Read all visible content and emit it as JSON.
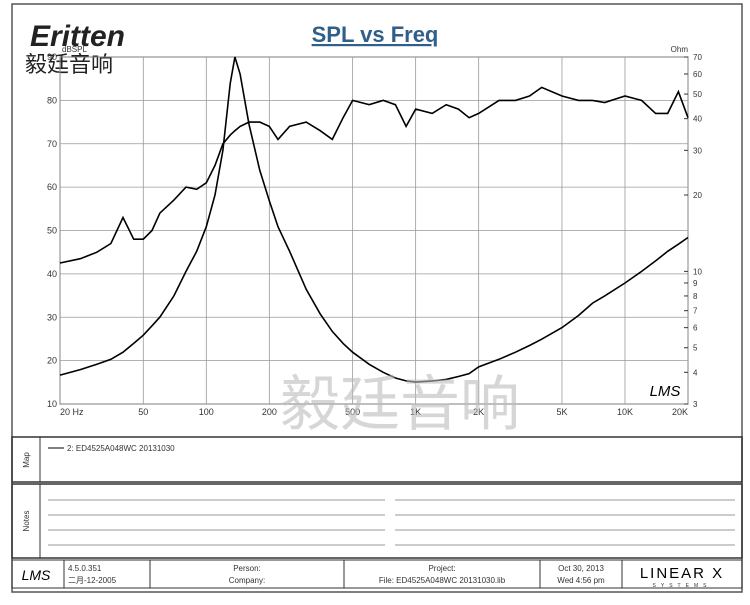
{
  "header": {
    "logo": "Eritten",
    "logo_cn": "毅廷音响",
    "watermark": "毅廷音响"
  },
  "chart_data": {
    "type": "line",
    "title": "SPL vs Freq",
    "ylabel": "dBSPL",
    "y2label": "Ohm",
    "annotation": "LMS",
    "xscale": "log",
    "y2scale": "log",
    "grid": true,
    "xlim": [
      20,
      20000
    ],
    "ylim": [
      10,
      90
    ],
    "y2lim": [
      3,
      70
    ],
    "xticks": [
      {
        "value": 20,
        "label": "20 Hz"
      },
      50,
      100,
      200,
      500,
      {
        "value": 1000,
        "label": "1K"
      },
      {
        "value": 2000,
        "label": "2K"
      },
      {
        "value": 5000,
        "label": "5K"
      },
      {
        "value": 10000,
        "label": "10K"
      },
      {
        "value": 20000,
        "label": "20K"
      }
    ],
    "yticks": [
      10,
      20,
      30,
      40,
      50,
      60,
      70,
      80,
      90
    ],
    "y2ticks": [
      3,
      4,
      5,
      6,
      7,
      8,
      9,
      10,
      20,
      30,
      40,
      50,
      60,
      70
    ],
    "x": [
      20,
      25,
      30,
      35,
      40,
      45,
      50,
      55,
      60,
      70,
      80,
      90,
      100,
      110,
      120,
      130,
      137,
      145,
      160,
      180,
      200,
      220,
      250,
      300,
      350,
      400,
      450,
      500,
      600,
      700,
      800,
      900,
      1000,
      1200,
      1400,
      1600,
      1800,
      2000,
      2500,
      3000,
      3500,
      4000,
      5000,
      6000,
      7000,
      8000,
      10000,
      12000,
      14000,
      16000,
      18000,
      20000
    ],
    "series": [
      {
        "name": "2: ED4525A048WC   20131030",
        "color": "#000000",
        "values": [
          42.5,
          43.5,
          45,
          47,
          53,
          48,
          48,
          50,
          54,
          57,
          60,
          59.5,
          61,
          65,
          70,
          72,
          73,
          74,
          75,
          75,
          74,
          71,
          74,
          75,
          73,
          71,
          76,
          80,
          79,
          80,
          79,
          74,
          78,
          77,
          79,
          78,
          76,
          77,
          80,
          80,
          81,
          83,
          81,
          80,
          80,
          79.5,
          81,
          80,
          77,
          77,
          82,
          76
        ]
      },
      {
        "color": "#000000",
        "axis": "y2",
        "values": [
          3.9,
          4.1,
          4.3,
          4.5,
          4.8,
          5.2,
          5.6,
          6.1,
          6.6,
          8,
          10,
          12,
          15,
          20,
          30,
          55,
          70,
          60,
          38,
          25,
          19,
          15,
          12,
          8.5,
          6.8,
          5.8,
          5.2,
          4.8,
          4.3,
          4,
          3.8,
          3.7,
          3.66,
          3.7,
          3.75,
          3.85,
          3.95,
          4.2,
          4.5,
          4.8,
          5.1,
          5.4,
          6,
          6.7,
          7.5,
          8,
          9,
          10,
          11,
          12,
          12.8,
          13.6
        ]
      }
    ]
  },
  "map": {
    "label": "Map"
  },
  "notes": {
    "label": "Notes"
  },
  "footer": {
    "lms": "LMS",
    "version": "4.5.0.351",
    "date": "二月-12-2005",
    "person": "Person:",
    "company": "Company:",
    "project": "Project:",
    "file": "File: ED4525A048WC  20131030.lib",
    "date2": "Oct 30, 2013",
    "time": "Wed  4:56 pm",
    "brand": "LINEAR X",
    "brand_sub": "SYSTEMS"
  }
}
